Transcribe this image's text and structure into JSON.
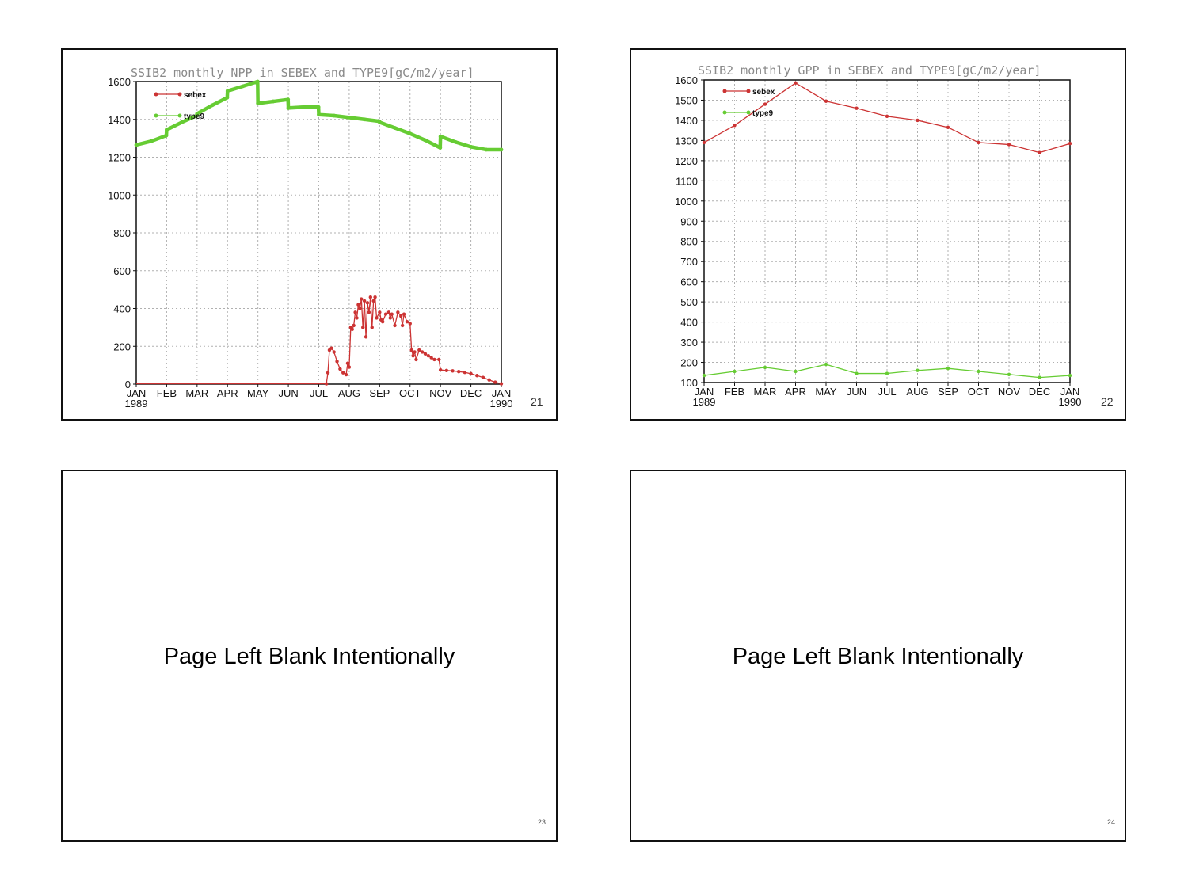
{
  "pages": [
    {
      "number": "21"
    },
    {
      "number": "22"
    },
    {
      "number": "23",
      "text": "Page Left Blank Intentionally"
    },
    {
      "number": "24",
      "text": "Page Left Blank Intentionally"
    }
  ],
  "colors": {
    "sebex": "#cc3333",
    "type9": "#66cc33",
    "grid": "#b0b0b0"
  },
  "chart_data": [
    {
      "type": "line",
      "title": "SSIB2 monthly NPP in SEBEX and TYPE9[gC/m2/year]",
      "x_tick_labels": [
        "JAN",
        "FEB",
        "MAR",
        "APR",
        "MAY",
        "JUN",
        "JUL",
        "AUG",
        "SEP",
        "OCT",
        "NOV",
        "DEC",
        "JAN"
      ],
      "x_year_labels": [
        "1989",
        "1990"
      ],
      "xlim": [
        "1989-01",
        "1990-01"
      ],
      "ylim": [
        0,
        1600
      ],
      "yticks": [
        0,
        200,
        400,
        600,
        800,
        1000,
        1200,
        1400,
        1600
      ],
      "grid": true,
      "legend_position": "top-left",
      "series": [
        {
          "name": "sebex",
          "color": "#cc3333",
          "points": [
            [
              0,
              2
            ],
            [
              1,
              2
            ],
            [
              2,
              2
            ],
            [
              3,
              2
            ],
            [
              4,
              2
            ],
            [
              5,
              2
            ],
            [
              6,
              2
            ],
            [
              6.25,
              2
            ],
            [
              6.3,
              60
            ],
            [
              6.35,
              180
            ],
            [
              6.42,
              190
            ],
            [
              6.5,
              170
            ],
            [
              6.6,
              120
            ],
            [
              6.7,
              80
            ],
            [
              6.8,
              60
            ],
            [
              6.9,
              50
            ],
            [
              6.95,
              110
            ],
            [
              7.0,
              90
            ],
            [
              7.05,
              300
            ],
            [
              7.1,
              290
            ],
            [
              7.15,
              310
            ],
            [
              7.2,
              380
            ],
            [
              7.25,
              350
            ],
            [
              7.3,
              420
            ],
            [
              7.35,
              400
            ],
            [
              7.4,
              450
            ],
            [
              7.45,
              300
            ],
            [
              7.5,
              440
            ],
            [
              7.55,
              250
            ],
            [
              7.6,
              430
            ],
            [
              7.65,
              380
            ],
            [
              7.7,
              460
            ],
            [
              7.75,
              300
            ],
            [
              7.8,
              440
            ],
            [
              7.85,
              460
            ],
            [
              7.9,
              350
            ],
            [
              8.0,
              380
            ],
            [
              8.05,
              340
            ],
            [
              8.1,
              330
            ],
            [
              8.2,
              370
            ],
            [
              8.3,
              380
            ],
            [
              8.35,
              350
            ],
            [
              8.4,
              370
            ],
            [
              8.5,
              310
            ],
            [
              8.6,
              380
            ],
            [
              8.7,
              360
            ],
            [
              8.75,
              310
            ],
            [
              8.8,
              370
            ],
            [
              8.9,
              330
            ],
            [
              9.0,
              320
            ],
            [
              9.05,
              180
            ],
            [
              9.1,
              150
            ],
            [
              9.15,
              170
            ],
            [
              9.2,
              130
            ],
            [
              9.3,
              180
            ],
            [
              9.4,
              170
            ],
            [
              9.5,
              160
            ],
            [
              9.6,
              150
            ],
            [
              9.7,
              140
            ],
            [
              9.8,
              130
            ],
            [
              9.95,
              130
            ],
            [
              10.0,
              75
            ],
            [
              10.2,
              72
            ],
            [
              10.4,
              70
            ],
            [
              10.6,
              66
            ],
            [
              10.8,
              62
            ],
            [
              11.0,
              55
            ],
            [
              11.2,
              45
            ],
            [
              11.4,
              35
            ],
            [
              11.6,
              22
            ],
            [
              11.8,
              10
            ],
            [
              12.0,
              2
            ]
          ]
        },
        {
          "name": "type9",
          "color": "#66cc33",
          "points": [
            [
              0,
              1265
            ],
            [
              0.5,
              1285
            ],
            [
              0.99,
              1315
            ],
            [
              1.0,
              1345
            ],
            [
              1.5,
              1385
            ],
            [
              1.99,
              1420
            ],
            [
              2.0,
              1430
            ],
            [
              2.5,
              1475
            ],
            [
              2.99,
              1515
            ],
            [
              3.0,
              1550
            ],
            [
              3.5,
              1575
            ],
            [
              3.99,
              1600
            ],
            [
              4.0,
              1485
            ],
            [
              4.5,
              1495
            ],
            [
              4.99,
              1505
            ],
            [
              5.0,
              1460
            ],
            [
              5.5,
              1465
            ],
            [
              5.99,
              1465
            ],
            [
              6.0,
              1425
            ],
            [
              6.5,
              1420
            ],
            [
              7.0,
              1410
            ],
            [
              7.5,
              1400
            ],
            [
              7.99,
              1390
            ],
            [
              8.0,
              1385
            ],
            [
              8.5,
              1355
            ],
            [
              9.0,
              1325
            ],
            [
              9.5,
              1290
            ],
            [
              9.99,
              1250
            ],
            [
              10.0,
              1310
            ],
            [
              10.5,
              1280
            ],
            [
              11.0,
              1255
            ],
            [
              11.5,
              1240
            ],
            [
              12.0,
              1240
            ]
          ]
        }
      ]
    },
    {
      "type": "line",
      "title": "SSIB2 monthly GPP in SEBEX and TYPE9[gC/m2/year]",
      "x_tick_labels": [
        "JAN",
        "FEB",
        "MAR",
        "APR",
        "MAY",
        "JUN",
        "JUL",
        "AUG",
        "SEP",
        "OCT",
        "NOV",
        "DEC",
        "JAN"
      ],
      "x_year_labels": [
        "1989",
        "1990"
      ],
      "xlim": [
        "1989-01",
        "1990-01"
      ],
      "ylim": [
        100,
        1600
      ],
      "yticks": [
        100,
        200,
        300,
        400,
        500,
        600,
        700,
        800,
        900,
        1000,
        1100,
        1200,
        1300,
        1400,
        1500,
        1600
      ],
      "grid": true,
      "legend_position": "top-left",
      "series": [
        {
          "name": "sebex",
          "color": "#cc3333",
          "points": [
            [
              0,
              1290
            ],
            [
              1,
              1375
            ],
            [
              2,
              1480
            ],
            [
              3,
              1585
            ],
            [
              4,
              1495
            ],
            [
              5,
              1460
            ],
            [
              6,
              1420
            ],
            [
              7,
              1400
            ],
            [
              8,
              1365
            ],
            [
              9,
              1290
            ],
            [
              10,
              1280
            ],
            [
              11,
              1240
            ],
            [
              12,
              1285
            ]
          ]
        },
        {
          "name": "type9",
          "color": "#66cc33",
          "points": [
            [
              0,
              135
            ],
            [
              1,
              155
            ],
            [
              2,
              175
            ],
            [
              3,
              155
            ],
            [
              4,
              190
            ],
            [
              5,
              145
            ],
            [
              6,
              145
            ],
            [
              7,
              160
            ],
            [
              8,
              170
            ],
            [
              9,
              155
            ],
            [
              10,
              140
            ],
            [
              11,
              125
            ],
            [
              12,
              135
            ]
          ]
        }
      ]
    }
  ]
}
